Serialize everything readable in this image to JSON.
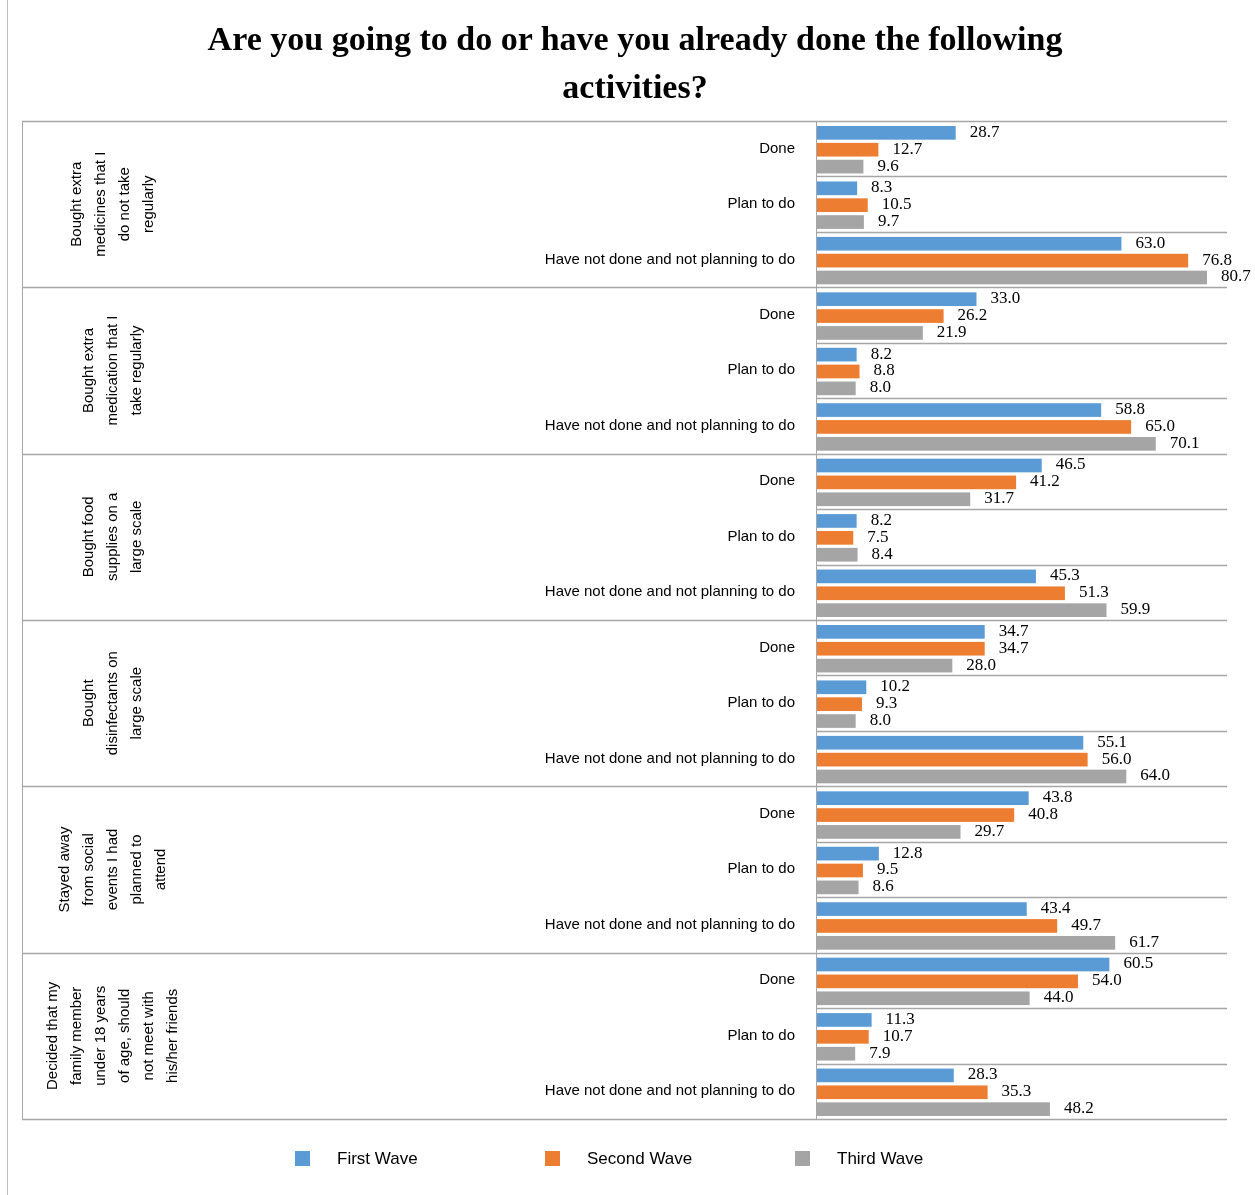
{
  "chart_data": [
    {
      "type": "bar",
      "orientation": "horizontal",
      "title": "Are you going to do or have you already done the following activities?",
      "ylabel": "Bought extra medicines that I do not take regularly",
      "categories": [
        "Done",
        "Plan to do",
        "Have not done and not planning to do"
      ],
      "series": [
        {
          "color": "#5b9bd5",
          "values": [
            28.7,
            8.3,
            63.0
          ],
          "value_labels": [
            "28.7",
            "8.3",
            "63.0"
          ]
        },
        {
          "color": "#ed7d31",
          "values": [
            12.7,
            10.5,
            76.8
          ],
          "value_labels": [
            "12.7",
            "10.5",
            "76.8"
          ]
        },
        {
          "color": "#a5a5a5",
          "values": [
            9.6,
            9.7,
            80.7
          ],
          "value_labels": [
            "9.6",
            "9.7",
            "80.7"
          ]
        }
      ]
    },
    {
      "type": "bar",
      "orientation": "horizontal",
      "ylabel": "Bought extra medication that I take regularly",
      "categories": [
        "Done",
        "Plan to do",
        "Have not done and not planning to do"
      ],
      "series": [
        {
          "color": "#5b9bd5",
          "values": [
            33.0,
            8.2,
            58.8
          ],
          "value_labels": [
            "33.0",
            "8.2",
            "58.8"
          ]
        },
        {
          "color": "#ed7d31",
          "values": [
            26.2,
            8.8,
            65.0
          ],
          "value_labels": [
            "26.2",
            "8.8",
            "65.0"
          ]
        },
        {
          "color": "#a5a5a5",
          "values": [
            21.9,
            8.0,
            70.1
          ],
          "value_labels": [
            "21.9",
            "8.0",
            "70.1"
          ]
        }
      ]
    },
    {
      "type": "bar",
      "orientation": "horizontal",
      "ylabel": "Bought food supplies on a large scale",
      "categories": [
        "Done",
        "Plan to do",
        "Have not done and not planning to do"
      ],
      "series": [
        {
          "color": "#5b9bd5",
          "values": [
            46.5,
            8.2,
            45.3
          ],
          "value_labels": [
            "46.5",
            "8.2",
            "45.3"
          ]
        },
        {
          "color": "#ed7d31",
          "values": [
            41.2,
            7.5,
            51.3
          ],
          "value_labels": [
            "41.2",
            "7.5",
            "51.3"
          ]
        },
        {
          "color": "#a5a5a5",
          "values": [
            31.7,
            8.4,
            59.9
          ],
          "value_labels": [
            "31.7",
            "8.4",
            "59.9"
          ]
        }
      ]
    },
    {
      "type": "bar",
      "orientation": "horizontal",
      "ylabel": "Bought disinfectants on large scale",
      "categories": [
        "Done",
        "Plan to do",
        "Have not done and not planning to do"
      ],
      "series": [
        {
          "color": "#5b9bd5",
          "values": [
            34.7,
            10.2,
            55.1
          ],
          "value_labels": [
            "34.7",
            "10.2",
            "55.1"
          ]
        },
        {
          "color": "#ed7d31",
          "values": [
            34.7,
            9.3,
            56.0
          ],
          "value_labels": [
            "34.7",
            "9.3",
            "56.0"
          ]
        },
        {
          "color": "#a5a5a5",
          "values": [
            28.0,
            8.0,
            64.0
          ],
          "value_labels": [
            "28.0",
            "8.0",
            "64.0"
          ]
        }
      ]
    },
    {
      "type": "bar",
      "orientation": "horizontal",
      "ylabel": "Stayed away from social events I had planned to attend",
      "categories": [
        "Done",
        "Plan to do",
        "Have not done and not planning to do"
      ],
      "series": [
        {
          "color": "#5b9bd5",
          "values": [
            43.8,
            12.8,
            43.4
          ],
          "value_labels": [
            "43.8",
            "12.8",
            "43.4"
          ]
        },
        {
          "color": "#ed7d31",
          "values": [
            40.8,
            9.5,
            49.7
          ],
          "value_labels": [
            "40.8",
            "9.5",
            "49.7"
          ]
        },
        {
          "color": "#a5a5a5",
          "values": [
            29.7,
            8.6,
            61.7
          ],
          "value_labels": [
            "29.7",
            "8.6",
            "61.7"
          ]
        }
      ]
    },
    {
      "type": "bar",
      "orientation": "horizontal",
      "ylabel": "Decided that my family member under 18 years of age, should not meet with his/her friends",
      "categories": [
        "Done",
        "Plan to do",
        "Have not done and not planning to do"
      ],
      "legend": "bottom",
      "series": [
        {
          "name": "First Wave",
          "color": "#5b9bd5",
          "values": [
            60.5,
            11.3,
            28.3
          ],
          "value_labels": [
            "60.5",
            "11.3",
            "28.3"
          ]
        },
        {
          "name": "Second Wave",
          "color": "#ed7d31",
          "values": [
            54.0,
            10.7,
            35.3
          ],
          "value_labels": [
            "54.0",
            "10.7",
            "35.3"
          ]
        },
        {
          "name": "Third Wave",
          "color": "#a5a5a5",
          "values": [
            44.0,
            7.9,
            48.2
          ],
          "value_labels": [
            "44.0",
            "7.9",
            "48.2"
          ]
        }
      ]
    }
  ]
}
